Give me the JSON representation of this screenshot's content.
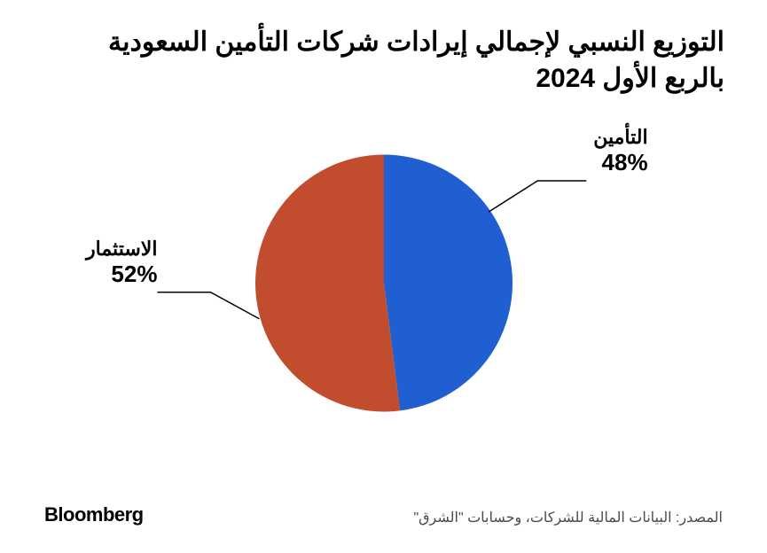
{
  "title_line1": "التوزيع النسبي لإجمالي إيرادات شركات التأمين السعودية",
  "title_line2": "بالربع الأول 2024",
  "title_fontsize": 30,
  "chart": {
    "type": "pie",
    "radius": 145,
    "background_color": "#ffffff",
    "slices": [
      {
        "label": "التأمين",
        "value": 48,
        "color": "#1f5fd1",
        "start_deg": 0,
        "end_deg": 172.8
      },
      {
        "label": "الاستثمار",
        "value": 52,
        "color": "#c14c2e",
        "start_deg": 172.8,
        "end_deg": 360
      }
    ],
    "label_fontsize": 22,
    "pct_fontsize": 26,
    "leader_color": "#000000"
  },
  "footer": {
    "brand": "Bloomberg",
    "brand_fontsize": 22,
    "source": "المصدر: البيانات المالية للشركات، وحسابات \"الشرق\"",
    "source_fontsize": 16,
    "source_color": "#4a4a4a"
  }
}
